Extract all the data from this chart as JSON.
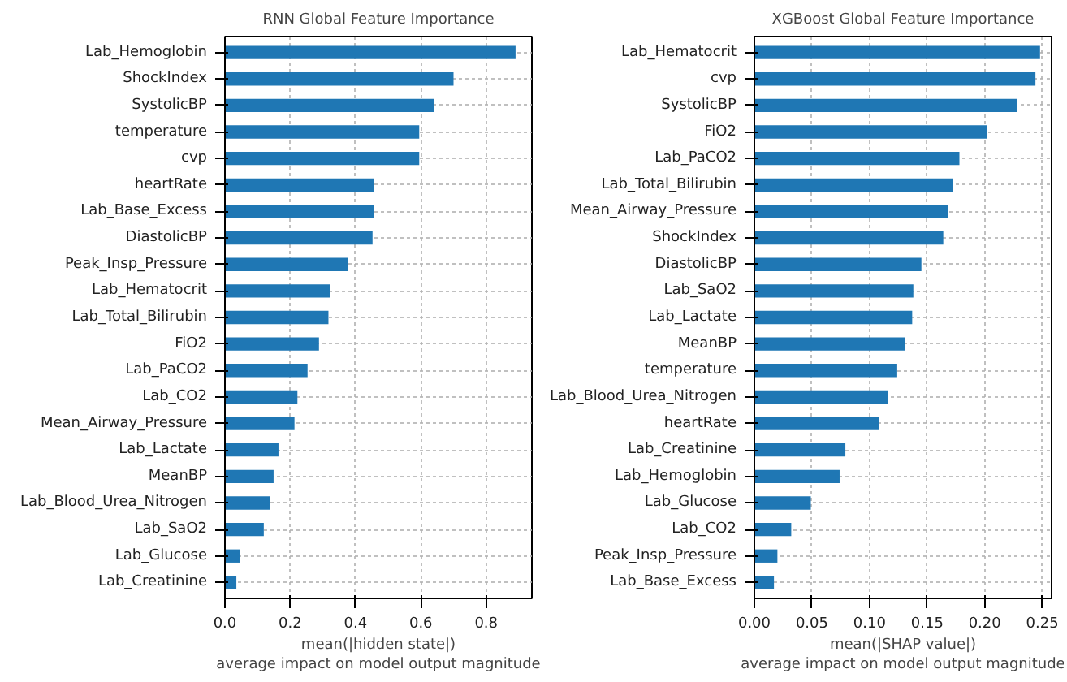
{
  "chart_data": [
    {
      "type": "bar",
      "orientation": "horizontal",
      "title": "RNN Global Feature Importance",
      "xlabel": "mean(|hidden state|)\naverage impact on model output magnitude",
      "categories": [
        "Lab_Hemoglobin",
        "ShockIndex",
        "SystolicBP",
        "temperature",
        "cvp",
        "heartRate",
        "Lab_Base_Excess",
        "DiastolicBP",
        "Peak_Insp_Pressure",
        "Lab_Hematocrit",
        "Lab_Total_Bilirubin",
        "FiO2",
        "Lab_PaCO2",
        "Lab_CO2",
        "Mean_Airway_Pressure",
        "Lab_Lactate",
        "MeanBP",
        "Lab_Blood_Urea_Nitrogen",
        "Lab_SaO2",
        "Lab_Glucose",
        "Lab_Creatinine"
      ],
      "values": [
        0.89,
        0.7,
        0.64,
        0.595,
        0.595,
        0.457,
        0.457,
        0.452,
        0.377,
        0.322,
        0.317,
        0.288,
        0.253,
        0.222,
        0.213,
        0.164,
        0.149,
        0.139,
        0.119,
        0.045,
        0.035
      ],
      "color": "#1f77b4",
      "xlim": [
        0,
        0.94
      ],
      "xticks": [
        {
          "value": 0,
          "label": "0.0"
        },
        0.2,
        0.4,
        0.6,
        0.8
      ],
      "grid": true
    },
    {
      "type": "bar",
      "orientation": "horizontal",
      "title": "XGBoost Global Feature Importance",
      "xlabel": "mean(|SHAP value|)\naverage impact on model output magnitude",
      "categories": [
        "Lab_Hematocrit",
        "cvp",
        "SystolicBP",
        "FiO2",
        "Lab_PaCO2",
        "Lab_Total_Bilirubin",
        "Mean_Airway_Pressure",
        "ShockIndex",
        "DiastolicBP",
        "Lab_SaO2",
        "Lab_Lactate",
        "MeanBP",
        "temperature",
        "Lab_Blood_Urea_Nitrogen",
        "heartRate",
        "Lab_Creatinine",
        "Lab_Hemoglobin",
        "Lab_Glucose",
        "Lab_CO2",
        "Peak_Insp_Pressure",
        "Lab_Base_Excess"
      ],
      "values": [
        0.248,
        0.244,
        0.228,
        0.202,
        0.178,
        0.172,
        0.168,
        0.164,
        0.145,
        0.138,
        0.137,
        0.131,
        0.124,
        0.116,
        0.108,
        0.079,
        0.074,
        0.049,
        0.032,
        0.02,
        0.017
      ],
      "color": "#1f77b4",
      "xlim": [
        0,
        0.258
      ],
      "xticks": [
        {
          "value": 0,
          "label": "0.00"
        },
        0.05,
        {
          "value": 0.1,
          "label": "0.10"
        },
        0.15,
        {
          "value": 0.2,
          "label": "0.20"
        },
        0.25
      ],
      "grid": true
    }
  ]
}
